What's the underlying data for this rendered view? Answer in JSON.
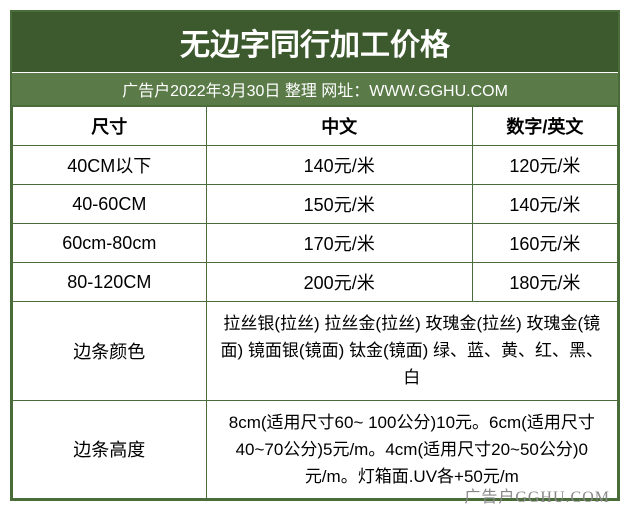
{
  "title": "无边字同行加工价格",
  "subtitle": "广告户2022年3月30日 整理 网址：WWW.GGHU.COM",
  "headers": {
    "size": "尺寸",
    "chinese": "中文",
    "number_english": "数字/英文"
  },
  "rows": [
    {
      "size": "40CM以下",
      "chinese": "140元/米",
      "english": "120元/米"
    },
    {
      "size": "40-60CM",
      "chinese": "150元/米",
      "english": "140元/米"
    },
    {
      "size": "60cm-80cm",
      "chinese": "170元/米",
      "english": "160元/米"
    },
    {
      "size": "80-120CM",
      "chinese": "200元/米",
      "english": "180元/米"
    }
  ],
  "extra": [
    {
      "label": "边条颜色",
      "desc": "拉丝银(拉丝) 拉丝金(拉丝) 玫瑰金(拉丝) 玫瑰金(镜面) 镜面银(镜面) 钛金(镜面) 绿、蓝、黄、红、黑、白"
    },
    {
      "label": "边条高度",
      "desc": "8cm(适用尺寸60~ 100公分)10元。6cm(适用尺寸40~70公分)5元/m。4cm(适用尺寸20~50公分)0元/m。灯箱面.UV各+50元/m"
    }
  ],
  "watermark": "广告户GGHU.COM",
  "colors": {
    "title_bg": "#3d5a2e",
    "subtitle_bg": "#5a7a48",
    "border": "#4a6b3a",
    "text_white": "#ffffff",
    "text_black": "#000000",
    "watermark": "#888888"
  }
}
